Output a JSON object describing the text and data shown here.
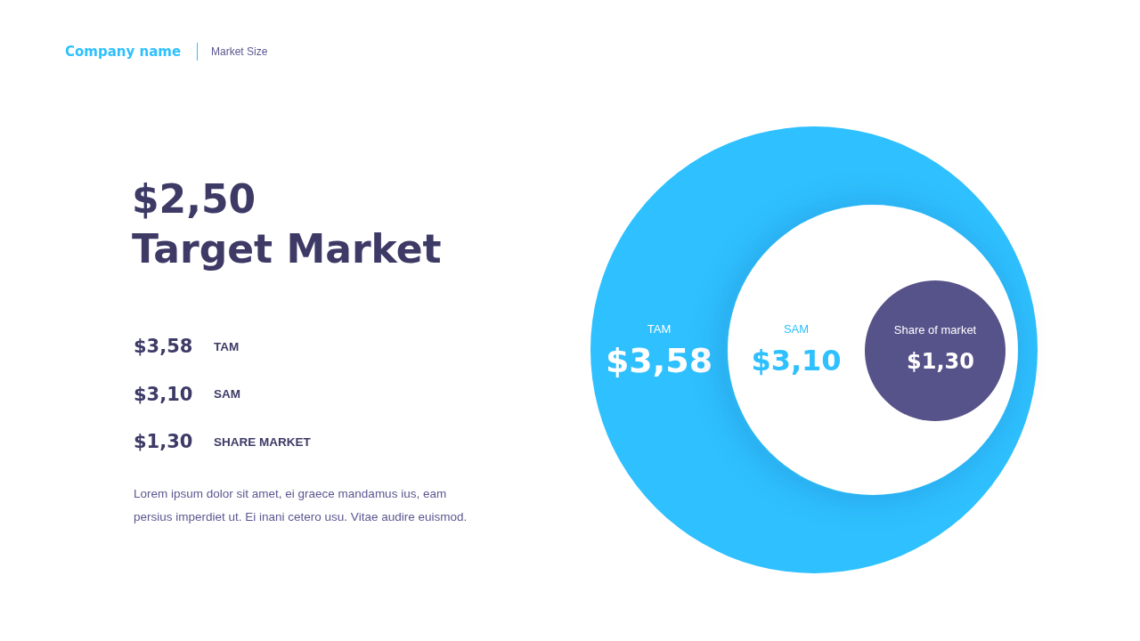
{
  "chart_data": {
    "type": "other",
    "title": "Company name",
    "subtitle": "Market Size",
    "categories": [
      "TAM",
      "SAM",
      "Share of market"
    ],
    "values": [
      3.58,
      3.1,
      1.3
    ],
    "value_labels": [
      "$3,58",
      "$3,10",
      "$1,30"
    ],
    "colors": [
      "#2ec0ff",
      "#ffffff",
      "#56528a"
    ],
    "annotations": [
      "$2,50",
      "Target Market",
      "$3,58",
      "TAM",
      "$3,10",
      "SAM",
      "$1,30",
      "SHARE MARKET",
      "Lorem ipsum dolor sit amet, ei graece mandamus ius, eam persius imperdiet ut. Ei inani cetero usu. Vitae audire euismod."
    ]
  }
}
